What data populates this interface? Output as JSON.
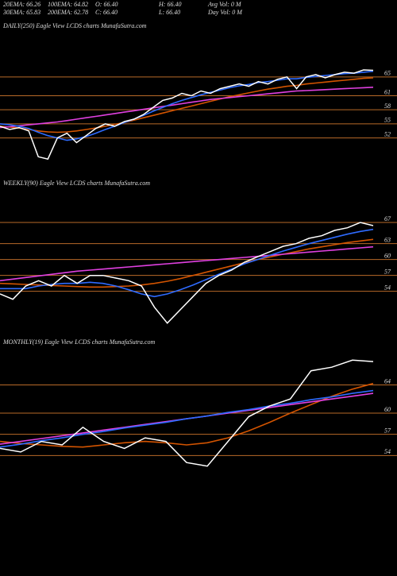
{
  "header": {
    "rows": [
      [
        "20EMA: 66.26",
        "100EMA: 64.82",
        "O: 66.40",
        "H: 66.40",
        "Avg Vol: 0  M"
      ],
      [
        "30EMA: 65.83",
        "200EMA: 62.78",
        "C: 66.40",
        "L: 66.40",
        "Day Vol: 0  M"
      ]
    ]
  },
  "chart_data": [
    {
      "type": "line",
      "title": "DAILY(250) Eagle  View  LCDS charts MunafaSutra.com",
      "ylim": [
        45,
        78
      ],
      "yticks": [
        65,
        61,
        58,
        55,
        52
      ],
      "grid": true,
      "grid_color": "#b86a28",
      "series": [
        {
          "color": "#d35400",
          "values": [
            54.5,
            54.3,
            54.1,
            53.8,
            53.5,
            53.3,
            53.2,
            53.3,
            53.5,
            53.8,
            54.1,
            54.5,
            54.9,
            55.3,
            55.8,
            56.3,
            56.8,
            57.3,
            57.8,
            58.3,
            58.8,
            59.3,
            59.8,
            60.3,
            60.8,
            61.2,
            61.6,
            62,
            62.4,
            62.7,
            63,
            63.2,
            63.5,
            63.7,
            63.9,
            64.1,
            64.3,
            64.5,
            64.7,
            64.8
          ]
        },
        {
          "color": "#e040e0",
          "values": [
            54.2,
            54.4,
            54.6,
            54.8,
            55,
            55.2,
            55.4,
            55.7,
            56,
            56.3,
            56.6,
            56.9,
            57.2,
            57.5,
            57.8,
            58.1,
            58.4,
            58.7,
            59,
            59.3,
            59.6,
            59.9,
            60.2,
            60.4,
            60.6,
            60.8,
            61,
            61.2,
            61.4,
            61.6,
            61.8,
            62,
            62.1,
            62.2,
            62.3,
            62.4,
            62.5,
            62.6,
            62.7,
            62.8
          ]
        },
        {
          "color": "#2e6bff",
          "values": [
            55,
            54.8,
            54.5,
            54,
            53.2,
            52.5,
            52,
            51.5,
            51.8,
            52.3,
            53,
            53.8,
            54.5,
            55.3,
            56,
            56.8,
            57.7,
            58.5,
            59.3,
            60,
            60.6,
            61.2,
            61.7,
            62.2,
            62.7,
            63.1,
            63.4,
            63.8,
            64,
            64.3,
            64.6,
            64.6,
            64.9,
            65.1,
            65.3,
            65.5,
            65.7,
            65.8,
            66,
            66.2
          ]
        },
        {
          "color": "#ffffff",
          "values": [
            54.5,
            53.8,
            54.2,
            53.5,
            48,
            47.5,
            52,
            53,
            51,
            52.5,
            54,
            55,
            54.5,
            55.5,
            56,
            57,
            58.5,
            60,
            60.5,
            61.5,
            61,
            62,
            61.5,
            62.5,
            63,
            63.5,
            63,
            64,
            63.5,
            64.5,
            65,
            62.5,
            65,
            65.5,
            64.8,
            65.5,
            66,
            65.8,
            66.5,
            66.4
          ]
        }
      ]
    },
    {
      "type": "line",
      "title": "WEEKLY(90) Eagle  View  LCDS charts MunafaSutra.com",
      "ylim": [
        46,
        73
      ],
      "yticks": [
        67,
        63,
        60,
        57,
        54
      ],
      "grid": true,
      "grid_color": "#b86a28",
      "series": [
        {
          "color": "#d35400",
          "values": [
            55.5,
            55.4,
            55.3,
            55.2,
            55.1,
            55,
            54.9,
            54.8,
            54.8,
            54.9,
            55,
            55.2,
            55.5,
            55.9,
            56.4,
            57,
            57.6,
            58.2,
            58.8,
            59.4,
            60,
            60.5,
            61,
            61.5,
            62,
            62.4,
            62.8,
            63.2,
            63.5,
            63.8
          ]
        },
        {
          "color": "#e040e0",
          "values": [
            56,
            56.3,
            56.6,
            56.9,
            57.2,
            57.5,
            57.8,
            58,
            58.2,
            58.4,
            58.6,
            58.8,
            59,
            59.2,
            59.4,
            59.6,
            59.8,
            60,
            60.2,
            60.4,
            60.6,
            60.8,
            61,
            61.2,
            61.4,
            61.6,
            61.8,
            62,
            62.2,
            62.4
          ]
        },
        {
          "color": "#2e6bff",
          "values": [
            54.5,
            54.5,
            54.5,
            55,
            55.3,
            55.5,
            55.5,
            55.7,
            55.5,
            55,
            54.3,
            53.5,
            53,
            53.5,
            54.3,
            55.2,
            56.2,
            57.2,
            58.2,
            59.2,
            60,
            60.8,
            61.6,
            62.3,
            63,
            63.6,
            64.2,
            64.8,
            65.3,
            65.7
          ]
        },
        {
          "color": "#ffffff",
          "values": [
            53.5,
            52.5,
            55,
            56,
            55,
            57,
            55.5,
            57,
            57,
            56.5,
            56,
            55,
            51,
            48,
            50.5,
            53,
            55.5,
            57,
            58,
            59.5,
            60.5,
            61.5,
            62.5,
            63,
            64,
            64.5,
            65.5,
            66,
            67,
            66.4
          ]
        }
      ]
    },
    {
      "type": "line",
      "title": "MONTHLY(19) Eagle  View  LCDS charts MunafaSutra.com",
      "ylim": [
        51,
        69
      ],
      "yticks": [
        64,
        60,
        57,
        54
      ],
      "grid": true,
      "grid_color": "#b86a28",
      "series": [
        {
          "color": "#d35400",
          "values": [
            56,
            55.7,
            55.5,
            55.3,
            55.2,
            55.5,
            55.8,
            56,
            55.8,
            55.5,
            55.8,
            56.5,
            57.5,
            58.7,
            60,
            61.2,
            62.4,
            63.4,
            64.2
          ]
        },
        {
          "color": "#e040e0",
          "values": [
            55.6,
            56,
            56.4,
            56.8,
            57.2,
            57.6,
            58,
            58.4,
            58.8,
            59.2,
            59.6,
            60,
            60.4,
            60.8,
            61.2,
            61.6,
            62,
            62.4,
            62.8
          ]
        },
        {
          "color": "#2e6bff",
          "values": [
            55.2,
            55.6,
            56.1,
            56.5,
            57,
            57.4,
            57.9,
            58.3,
            58.7,
            59.2,
            59.6,
            60.1,
            60.5,
            61,
            61.4,
            61.9,
            62.3,
            62.8,
            63.2
          ]
        },
        {
          "color": "#ffffff",
          "values": [
            55,
            54.5,
            56,
            55.5,
            58,
            56,
            55,
            56.5,
            56,
            53,
            52.5,
            56,
            59.5,
            61,
            62,
            66,
            66.5,
            67.5,
            67.3
          ]
        }
      ]
    }
  ]
}
